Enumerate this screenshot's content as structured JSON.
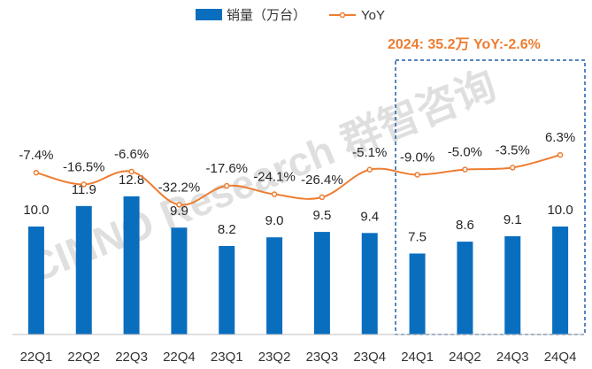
{
  "chart_data": {
    "type": "bar",
    "categories": [
      "22Q1",
      "22Q2",
      "22Q3",
      "22Q4",
      "23Q1",
      "23Q2",
      "23Q3",
      "23Q4",
      "24Q1",
      "24Q2",
      "24Q3",
      "24Q4"
    ],
    "series": [
      {
        "name": "销量（万台）",
        "type": "bar",
        "values": [
          10.0,
          11.9,
          12.8,
          9.9,
          8.2,
          9.0,
          9.5,
          9.4,
          7.5,
          8.6,
          9.1,
          10.0
        ],
        "labels": [
          "10.0",
          "11.9",
          "12.8",
          "9.9",
          "8.2",
          "9.0",
          "9.5",
          "9.4",
          "7.5",
          "8.6",
          "9.1",
          "10.0"
        ]
      },
      {
        "name": "YoY",
        "type": "line",
        "values": [
          -7.4,
          -16.5,
          -6.6,
          -32.2,
          -17.6,
          -24.1,
          -26.4,
          -5.1,
          -9.0,
          -5.0,
          -3.5,
          6.3
        ],
        "labels": [
          "-7.4%",
          "-16.5%",
          "-6.6%",
          "-32.2%",
          "-17.6%",
          "-24.1%",
          "-26.4%",
          "-5.1%",
          "-9.0%",
          "-5.0%",
          "-3.5%",
          "6.3%"
        ]
      }
    ],
    "legend": {
      "position": "top"
    },
    "annotation": "2024: 35.2万  YoY:-2.6%",
    "watermark": "CINNO Research 群智咨询",
    "grid": false
  },
  "colors": {
    "bar": "#0a6ebf",
    "line": "#ed7d31",
    "annotation": "#ed7d31",
    "highlight_box": "#1f5fa8"
  }
}
